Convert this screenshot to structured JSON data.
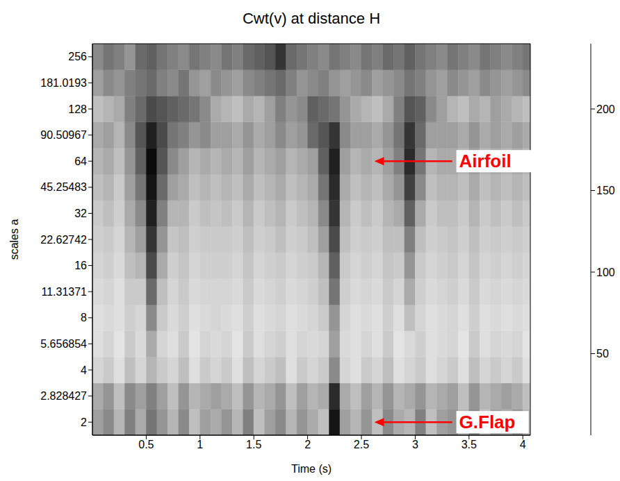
{
  "chart_data": {
    "type": "heatmap",
    "title": "Cwt(v) at distance H",
    "x_label": "Time (s)",
    "y_label": "scales a",
    "x": [
      0.05,
      0.15,
      0.25,
      0.35,
      0.45,
      0.55,
      0.65,
      0.75,
      0.85,
      0.95,
      1.05,
      1.15,
      1.25,
      1.35,
      1.45,
      1.55,
      1.65,
      1.75,
      1.85,
      1.95,
      2.05,
      2.15,
      2.25,
      2.35,
      2.45,
      2.55,
      2.65,
      2.75,
      2.85,
      2.95,
      3.05,
      3.15,
      3.25,
      3.35,
      3.45,
      3.55,
      3.65,
      3.75,
      3.85,
      3.95,
      4.05
    ],
    "y": [
      2,
      2.828427,
      4,
      5.656854,
      8,
      11.31371,
      16,
      22.62742,
      32,
      45.25483,
      64,
      90.50967,
      128,
      181.0193,
      256
    ],
    "cells": [
      [
        90,
        110,
        70,
        120,
        80,
        130,
        100,
        70,
        110,
        60,
        90,
        80,
        100,
        70,
        120,
        60,
        90,
        110,
        70,
        100,
        80,
        60,
        220,
        90,
        70,
        100,
        60,
        110,
        80,
        70,
        120,
        60,
        90,
        100,
        70,
        110,
        60,
        90,
        80,
        100,
        70
      ],
      [
        80,
        100,
        60,
        110,
        90,
        120,
        90,
        60,
        100,
        70,
        80,
        90,
        80,
        60,
        100,
        70,
        80,
        100,
        60,
        90,
        70,
        80,
        200,
        80,
        60,
        90,
        70,
        100,
        70,
        80,
        100,
        70,
        80,
        90,
        60,
        100,
        70,
        80,
        90,
        80,
        60
      ],
      [
        40,
        50,
        30,
        60,
        40,
        70,
        50,
        40,
        60,
        30,
        50,
        40,
        50,
        30,
        60,
        40,
        50,
        60,
        30,
        50,
        40,
        50,
        110,
        40,
        30,
        50,
        40,
        60,
        30,
        40,
        50,
        30,
        40,
        50,
        30,
        60,
        40,
        50,
        40,
        50,
        30
      ],
      [
        30,
        40,
        25,
        50,
        35,
        80,
        40,
        30,
        50,
        25,
        40,
        35,
        40,
        25,
        50,
        30,
        40,
        45,
        30,
        40,
        35,
        40,
        90,
        35,
        30,
        40,
        30,
        50,
        25,
        35,
        45,
        30,
        35,
        40,
        25,
        50,
        30,
        40,
        35,
        40,
        25
      ],
      [
        30,
        35,
        30,
        45,
        40,
        110,
        50,
        35,
        45,
        30,
        35,
        40,
        35,
        30,
        45,
        30,
        35,
        40,
        30,
        35,
        40,
        50,
        100,
        40,
        30,
        35,
        30,
        45,
        30,
        60,
        40,
        30,
        35,
        40,
        30,
        45,
        30,
        35,
        30,
        35,
        30
      ],
      [
        35,
        40,
        30,
        50,
        50,
        140,
        60,
        40,
        50,
        35,
        40,
        40,
        40,
        35,
        50,
        35,
        40,
        45,
        35,
        40,
        45,
        60,
        130,
        45,
        35,
        40,
        35,
        50,
        40,
        80,
        45,
        35,
        40,
        45,
        35,
        50,
        35,
        40,
        35,
        40,
        35
      ],
      [
        40,
        45,
        35,
        60,
        70,
        170,
        80,
        45,
        55,
        40,
        45,
        45,
        45,
        40,
        55,
        40,
        45,
        50,
        40,
        45,
        50,
        70,
        150,
        50,
        40,
        45,
        40,
        55,
        50,
        100,
        50,
        40,
        45,
        50,
        40,
        55,
        40,
        45,
        40,
        45,
        40
      ],
      [
        45,
        50,
        40,
        70,
        90,
        190,
        100,
        55,
        60,
        45,
        50,
        50,
        50,
        45,
        60,
        45,
        50,
        60,
        45,
        50,
        60,
        90,
        170,
        60,
        45,
        50,
        45,
        60,
        60,
        120,
        60,
        45,
        50,
        55,
        45,
        60,
        45,
        50,
        45,
        50,
        45
      ],
      [
        50,
        60,
        45,
        80,
        110,
        210,
        120,
        70,
        70,
        50,
        60,
        55,
        60,
        50,
        70,
        50,
        60,
        70,
        50,
        60,
        70,
        110,
        190,
        70,
        50,
        60,
        50,
        70,
        80,
        150,
        80,
        50,
        60,
        60,
        50,
        70,
        50,
        60,
        50,
        60,
        50
      ],
      [
        60,
        70,
        50,
        90,
        130,
        220,
        140,
        90,
        80,
        60,
        70,
        60,
        70,
        60,
        80,
        60,
        70,
        80,
        60,
        70,
        80,
        130,
        200,
        80,
        60,
        70,
        60,
        80,
        100,
        180,
        110,
        60,
        70,
        70,
        60,
        80,
        60,
        70,
        60,
        70,
        60
      ],
      [
        70,
        80,
        60,
        100,
        150,
        230,
        160,
        110,
        90,
        70,
        80,
        70,
        80,
        70,
        90,
        70,
        80,
        90,
        70,
        80,
        90,
        150,
        210,
        90,
        70,
        80,
        70,
        90,
        120,
        200,
        130,
        70,
        80,
        80,
        70,
        90,
        70,
        80,
        70,
        80,
        70
      ],
      [
        80,
        90,
        70,
        110,
        160,
        210,
        170,
        130,
        120,
        100,
        110,
        90,
        90,
        80,
        100,
        80,
        90,
        110,
        90,
        100,
        140,
        160,
        190,
        110,
        90,
        90,
        80,
        100,
        130,
        190,
        140,
        90,
        90,
        90,
        80,
        100,
        80,
        90,
        80,
        90,
        80
      ],
      [
        60,
        70,
        80,
        120,
        140,
        170,
        160,
        150,
        140,
        130,
        110,
        80,
        70,
        60,
        80,
        70,
        90,
        120,
        100,
        110,
        150,
        140,
        130,
        100,
        80,
        70,
        60,
        80,
        120,
        160,
        150,
        110,
        90,
        70,
        60,
        80,
        70,
        90,
        80,
        70,
        60
      ],
      [
        90,
        110,
        100,
        120,
        130,
        140,
        120,
        110,
        130,
        100,
        90,
        110,
        100,
        90,
        110,
        120,
        130,
        140,
        120,
        100,
        110,
        120,
        100,
        90,
        100,
        110,
        90,
        100,
        110,
        130,
        120,
        100,
        90,
        110,
        100,
        90,
        110,
        100,
        90,
        100,
        110
      ],
      [
        110,
        130,
        120,
        100,
        140,
        150,
        130,
        120,
        110,
        130,
        120,
        110,
        130,
        120,
        140,
        150,
        160,
        190,
        140,
        130,
        120,
        110,
        130,
        120,
        110,
        130,
        120,
        140,
        130,
        150,
        130,
        120,
        110,
        130,
        120,
        110,
        130,
        120,
        110,
        120,
        130
      ]
    ],
    "xlim": [
      0,
      4.07
    ],
    "xticks": [
      0.5,
      1,
      1.5,
      2,
      2.5,
      3,
      3.5,
      4
    ],
    "ylim": [
      1.6818,
      304.44
    ],
    "yticks": [
      2,
      2.828427,
      4,
      5.656854,
      8,
      11.31371,
      16,
      22.62742,
      32,
      45.25483,
      64,
      90.50967,
      128,
      181.0193,
      256
    ],
    "log": "y",
    "colorbar": {
      "range": [
        0,
        240
      ],
      "ticks": [
        50,
        100,
        150,
        200
      ]
    },
    "annotations": [
      {
        "text": "Airfoil",
        "x": 2.62,
        "y": 64,
        "color": "#ff0000"
      },
      {
        "text": "G.Flap",
        "x": 2.62,
        "y": 2,
        "color": "#ff0000"
      }
    ]
  }
}
